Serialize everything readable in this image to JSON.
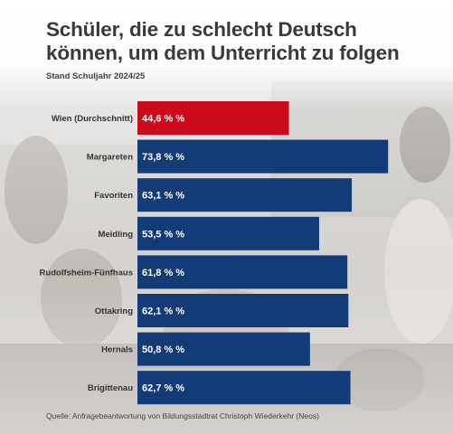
{
  "header": {
    "title_line1": "Schüler, die zu schlecht Deutsch",
    "title_line2": "können, um dem Unterricht zu folgen",
    "subtitle": "Stand Schuljahr 2024/25"
  },
  "footer": {
    "source": "Quelle: Anfragebeantwortung von Bildungsstadtrat Christoph Wiederkehr (Neos)"
  },
  "colors": {
    "highlight": "#cc0a1e",
    "bar": "#123b78"
  },
  "chart_data": {
    "type": "bar",
    "orientation": "horizontal",
    "title": "Schüler, die zu schlecht Deutsch können, um dem Unterricht zu folgen",
    "subtitle": "Stand Schuljahr 2024/25",
    "categories": [
      "Wien (Durchschnitt)",
      "Margareten",
      "Favoriten",
      "Meidling",
      "Rudolfsheim-Fünfhaus",
      "Ottakring",
      "Hernals",
      "Brigittenau"
    ],
    "values": [
      44.6,
      73.8,
      63.1,
      53.5,
      61.8,
      62.1,
      50.8,
      62.7
    ],
    "value_labels": [
      "44,6 % %",
      "73,8 % %",
      "63,1 % %",
      "53,5 % %",
      "61,8 % %",
      "62,1 % %",
      "50,8 % %",
      "62,7 % %"
    ],
    "highlight_index": 0,
    "xlim": [
      0,
      74
    ],
    "grid": false,
    "legend": "none"
  }
}
